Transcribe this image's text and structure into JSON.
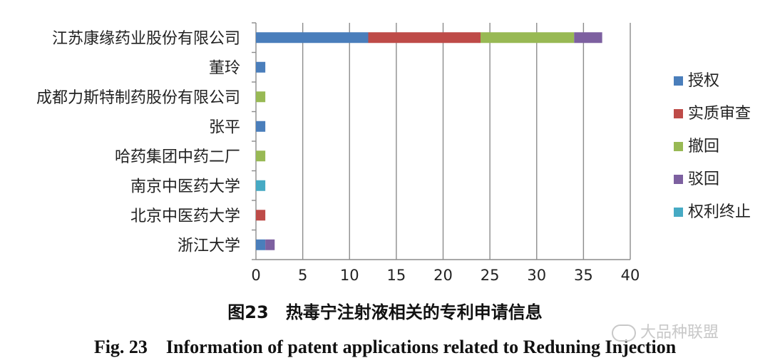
{
  "chart_data": {
    "type": "bar",
    "orientation": "horizontal",
    "stacked": true,
    "categories": [
      "江苏康缘药业股份有限公司",
      "董玲",
      "成都力斯特制药股份有限公司",
      "张平",
      "哈药集团中药二厂",
      "南京中医药大学",
      "北京中医药大学",
      "浙江大学"
    ],
    "series": [
      {
        "name": "授权",
        "color": "#4a7ebb",
        "values": [
          12,
          1,
          0,
          1,
          0,
          0,
          0,
          1
        ]
      },
      {
        "name": "实质审查",
        "color": "#be4b48",
        "values": [
          12,
          0,
          0,
          0,
          0,
          0,
          1,
          0
        ]
      },
      {
        "name": "撤回",
        "color": "#98b954",
        "values": [
          10,
          0,
          1,
          0,
          1,
          0,
          0,
          0
        ]
      },
      {
        "name": "驳回",
        "color": "#7d60a0",
        "values": [
          3,
          0,
          0,
          0,
          0,
          0,
          0,
          1
        ]
      },
      {
        "name": "权利终止",
        "color": "#46aac4",
        "values": [
          0,
          0,
          0,
          0,
          0,
          1,
          0,
          0
        ]
      }
    ],
    "xlim": [
      0,
      40
    ],
    "xticks": [
      0,
      5,
      10,
      15,
      20,
      25,
      30,
      35,
      40
    ],
    "grid": "vertical",
    "legend": "right"
  },
  "caption": {
    "cn": "图23　热毒宁注射液相关的专利申请信息",
    "en": "Fig. 23　Information of patent applications related to Reduning Injection"
  },
  "watermark": "大品种联盟"
}
